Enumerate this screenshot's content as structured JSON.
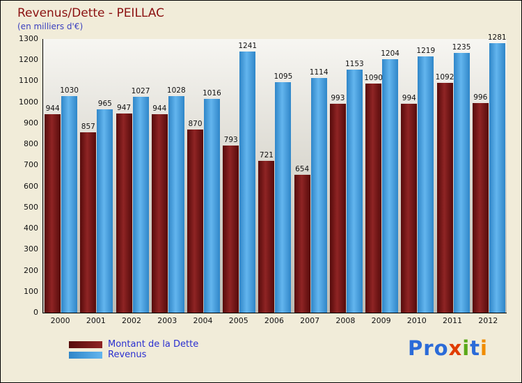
{
  "title": "Revenus/Dette - PEILLAC",
  "subtitle": "(en milliers d'€)",
  "chart_data": {
    "type": "bar",
    "categories": [
      "2000",
      "2001",
      "2002",
      "2003",
      "2004",
      "2005",
      "2006",
      "2007",
      "2008",
      "2009",
      "2010",
      "2011",
      "2012"
    ],
    "series": [
      {
        "name": "Montant de la Dette",
        "color": "#7d1414",
        "color_dark": "#560b0b",
        "color_light": "#8f2424",
        "values": [
          944,
          857,
          947,
          944,
          870,
          793,
          721,
          654,
          993,
          1090,
          994,
          1092,
          996
        ]
      },
      {
        "name": "Revenus",
        "color": "#4aa3e0",
        "color_dark": "#2f86c8",
        "color_light": "#63b5ee",
        "values": [
          1030,
          965,
          1027,
          1028,
          1016,
          1241,
          1095,
          1114,
          1153,
          1204,
          1219,
          1235,
          1281
        ]
      }
    ],
    "title": "Revenus/Dette - PEILLAC",
    "xlabel": "",
    "ylabel": "",
    "ylim": [
      0,
      1300
    ],
    "ytick_step": 100,
    "grid": false,
    "legend_position": "bottom-left"
  },
  "logo": {
    "letters": [
      {
        "ch": "P",
        "color": "#2b6bd8"
      },
      {
        "ch": "r",
        "color": "#2b6bd8"
      },
      {
        "ch": "o",
        "color": "#2b6bd8"
      },
      {
        "ch": "x",
        "color": "#e03c00"
      },
      {
        "ch": "i",
        "color": "#5aa818"
      },
      {
        "ch": "t",
        "color": "#2b6bd8"
      },
      {
        "ch": "i",
        "color": "#f08c00"
      }
    ]
  }
}
